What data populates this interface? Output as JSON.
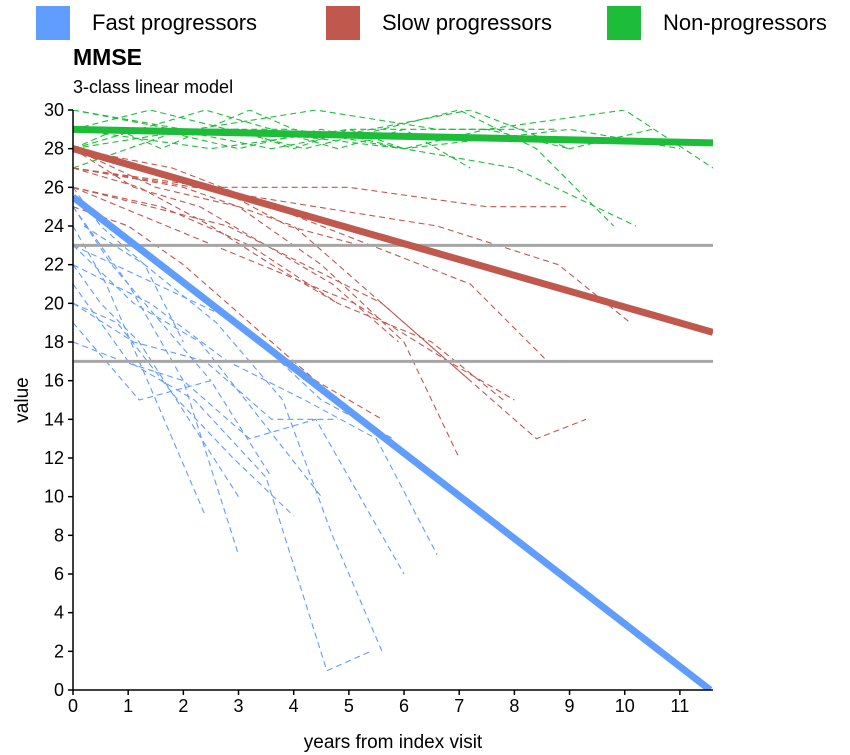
{
  "chart_data": {
    "type": "line",
    "title": "MMSE",
    "subtitle": "3-class linear model",
    "xlabel": "years from index visit",
    "ylabel": "value",
    "xlim": [
      0,
      11.6
    ],
    "ylim": [
      0,
      30
    ],
    "x_ticks": [
      0,
      1,
      2,
      3,
      4,
      5,
      6,
      7,
      8,
      9,
      10,
      11
    ],
    "y_ticks": [
      0,
      2,
      4,
      6,
      8,
      10,
      12,
      14,
      16,
      18,
      20,
      22,
      24,
      26,
      28,
      30
    ],
    "legend_position": "top",
    "grid": false,
    "reference_lines": [
      {
        "y": 23,
        "color": "#a6a6a6"
      },
      {
        "y": 17,
        "color": "#a6a6a6"
      }
    ],
    "series": [
      {
        "name": "Fast progressors",
        "color": "#619cff",
        "fitted_line": {
          "x": [
            0,
            11.55
          ],
          "y": [
            25.5,
            0
          ]
        },
        "trajectories": [
          {
            "x": [
              0,
              0.6,
              1.5,
              2.4
            ],
            "y": [
              24,
              21,
              15,
              9
            ]
          },
          {
            "x": [
              0,
              0.5,
              1.2,
              2.1,
              3.0
            ],
            "y": [
              22,
              20,
              18,
              14,
              10
            ]
          },
          {
            "x": [
              0,
              1.0,
              2.0,
              3.0
            ],
            "y": [
              25,
              21,
              16,
              7
            ]
          },
          {
            "x": [
              0,
              0.8,
              1.9,
              2.9,
              4.0
            ],
            "y": [
              20,
              19,
              15,
              12,
              9
            ]
          },
          {
            "x": [
              0,
              1.1,
              2.3,
              3.4,
              4.5
            ],
            "y": [
              23,
              20,
              18,
              14,
              10
            ]
          },
          {
            "x": [
              0,
              1.0,
              2.2,
              3.5,
              4.6,
              5.4
            ],
            "y": [
              21,
              17,
              15,
              11,
              1,
              2
            ]
          },
          {
            "x": [
              0.2,
              1.3,
              2.6,
              3.8,
              4.7,
              5.6
            ],
            "y": [
              24,
              22,
              19,
              15,
              8,
              2
            ]
          },
          {
            "x": [
              0,
              0.9,
              2.0,
              3.2,
              4.4,
              6.0
            ],
            "y": [
              18,
              17,
              16,
              13,
              14,
              6
            ]
          },
          {
            "x": [
              0,
              1.4,
              2.8,
              4.2,
              5.5,
              6.6
            ],
            "y": [
              22,
              20,
              17,
              15,
              13,
              7
            ]
          },
          {
            "x": [
              0,
              1.2,
              2.5,
              3.6
            ],
            "y": [
              19,
              15,
              16,
              11
            ]
          },
          {
            "x": [
              0,
              0.7,
              1.6,
              2.5
            ],
            "y": [
              25,
              22,
              19,
              16
            ]
          },
          {
            "x": [
              0,
              1.5,
              3.0,
              4.5,
              5.8
            ],
            "y": [
              23,
              21,
              19,
              15,
              13
            ]
          },
          {
            "x": [
              0,
              1.1,
              2.4,
              3.6,
              4.8
            ],
            "y": [
              20,
              18,
              17,
              14,
              14
            ]
          },
          {
            "x": [
              0,
              0.5,
              1.3,
              2.0
            ],
            "y": [
              26,
              24,
              22,
              18
            ]
          }
        ]
      },
      {
        "name": "Slow progressors",
        "color": "#c0584e",
        "fitted_line": {
          "x": [
            0,
            11.6
          ],
          "y": [
            28.0,
            18.5
          ]
        },
        "trajectories": [
          {
            "x": [
              0,
              1.2,
              2.5,
              3.6,
              4.8
            ],
            "y": [
              27,
              26,
              24,
              22,
              20
            ]
          },
          {
            "x": [
              0,
              1.5,
              3.0,
              4.5,
              6.0,
              7.0
            ],
            "y": [
              28,
              26,
              25,
              22,
              18,
              12
            ]
          },
          {
            "x": [
              0,
              1.4,
              2.8,
              4.2,
              5.6,
              7.2
            ],
            "y": [
              26,
              25,
              24,
              22,
              20,
              16
            ]
          },
          {
            "x": [
              0,
              2.0,
              4.0,
              6.0,
              8.4,
              9.3
            ],
            "y": [
              27,
              26,
              24,
              19,
              13,
              14
            ]
          },
          {
            "x": [
              0,
              1.8,
              3.6,
              5.4,
              7.2,
              8.6
            ],
            "y": [
              28,
              27,
              25,
              23,
              21,
              17
            ]
          },
          {
            "x": [
              0,
              2.2,
              4.4,
              6.6,
              8.8,
              10.1
            ],
            "y": [
              27,
              26,
              25,
              24,
              22,
              19
            ]
          },
          {
            "x": [
              0,
              1.0,
              2.0,
              3.2,
              4.4,
              5.6
            ],
            "y": [
              25,
              24,
              22,
              19,
              16,
              14
            ]
          },
          {
            "x": [
              0,
              1.6,
              3.2,
              4.8,
              6.5,
              7.8
            ],
            "y": [
              26,
              25,
              23,
              20,
              18,
              15
            ]
          },
          {
            "x": [
              0,
              1.3,
              2.6,
              3.9,
              5.2
            ],
            "y": [
              28,
              27,
              26,
              24,
              23
            ]
          },
          {
            "x": [
              0,
              2.5,
              5.0,
              7.5,
              9.0
            ],
            "y": [
              27,
              26,
              26,
              25,
              25
            ]
          },
          {
            "x": [
              0,
              1.7,
              3.4,
              5.1,
              6.8,
              8.0
            ],
            "y": [
              26,
              24,
              22,
              20,
              17,
              15
            ]
          },
          {
            "x": [
              0,
              1.1,
              2.3,
              3.5,
              4.7,
              5.9
            ],
            "y": [
              28,
              26,
              25,
              23,
              21,
              18
            ]
          }
        ]
      },
      {
        "name": "Non-progressors",
        "color": "#1dbd3a",
        "fitted_line": {
          "x": [
            0,
            11.6
          ],
          "y": [
            29.0,
            28.3
          ]
        },
        "trajectories": [
          {
            "x": [
              0,
              1.5,
              3.0,
              4.5,
              6.0,
              7.5,
              9.0
            ],
            "y": [
              29,
              29,
              28,
              29,
              28,
              29,
              28
            ]
          },
          {
            "x": [
              0,
              2.0,
              4.0,
              6.0,
              8.0,
              10.2
            ],
            "y": [
              30,
              29,
              29,
              28,
              27,
              24
            ]
          },
          {
            "x": [
              0,
              1.2,
              2.4,
              3.6,
              4.8,
              6.0,
              7.2
            ],
            "y": [
              28,
              29,
              30,
              29,
              28,
              29,
              27
            ]
          },
          {
            "x": [
              0,
              2.5,
              5.0,
              7.5,
              10.0,
              11.6
            ],
            "y": [
              29,
              28,
              29,
              29,
              30,
              27
            ]
          },
          {
            "x": [
              0,
              1.0,
              2.0,
              3.0,
              4.0,
              5.0,
              6.0
            ],
            "y": [
              27,
              28,
              29,
              29,
              28,
              29,
              28
            ]
          },
          {
            "x": [
              0,
              1.8,
              3.6,
              5.4,
              7.2,
              9.0,
              10.5
            ],
            "y": [
              30,
              29,
              28,
              29,
              30,
              28,
              29
            ]
          },
          {
            "x": [
              0,
              2.2,
              4.4,
              6.6,
              8.8
            ],
            "y": [
              28,
              29,
              30,
              29,
              29
            ]
          },
          {
            "x": [
              0,
              1.4,
              2.8,
              4.2,
              5.6,
              7.0,
              8.4,
              9.8
            ],
            "y": [
              29,
              30,
              29,
              28,
              29,
              30,
              28,
              24
            ]
          },
          {
            "x": [
              0,
              0.8,
              1.6,
              2.4,
              3.2,
              4.0
            ],
            "y": [
              28,
              29,
              28,
              29,
              30,
              29
            ]
          },
          {
            "x": [
              0,
              3.0,
              6.0,
              9.0,
              11.0
            ],
            "y": [
              29,
              29,
              28,
              29,
              28
            ]
          }
        ]
      }
    ]
  }
}
